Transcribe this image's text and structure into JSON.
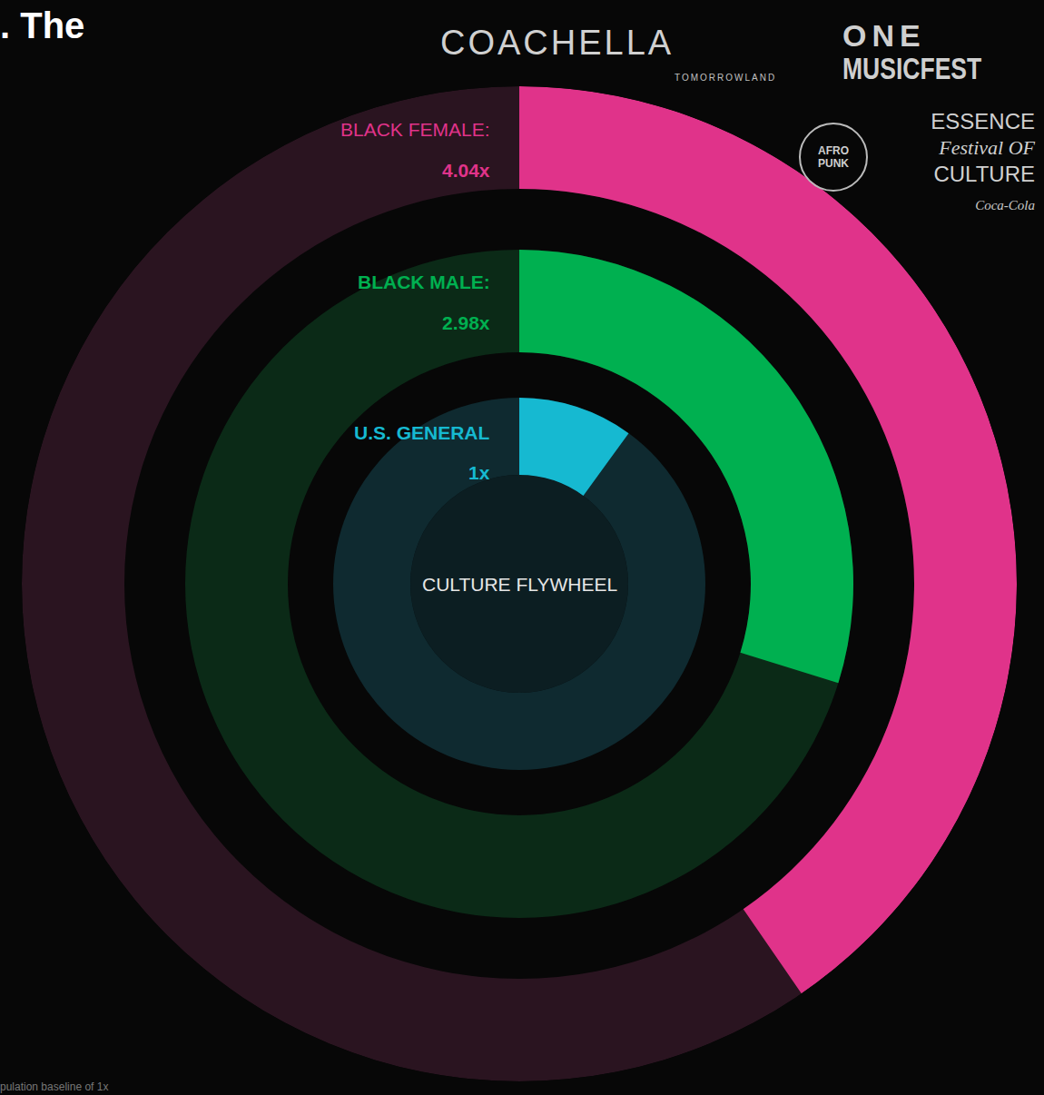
{
  "chart_data": {
    "type": "radial_bar",
    "title": ". The",
    "categories": [
      "U.S. GENERAL",
      "BLACK MALE:",
      "BLACK FEMALE:"
    ],
    "values": [
      1,
      2.98,
      4.04
    ],
    "value_labels": [
      "1x",
      "2.98x",
      "4.04x"
    ],
    "colors": [
      "#16b9d1",
      "#00b050",
      "#e0338a"
    ],
    "xlim": [
      0,
      10
    ],
    "tick_labels": false,
    "data_labels": true,
    "annotations": [
      "CULTURE FLYWHEEL"
    ],
    "footnote": "pulation baseline of 1x",
    "logos": [
      "COACHELLA",
      "TOMORROWLAND",
      "ONE",
      "MUSICFEST",
      "AFRO PUNK",
      "ESSENCE",
      "Festival OF",
      "CULTURE",
      "Coca-Cola"
    ]
  }
}
